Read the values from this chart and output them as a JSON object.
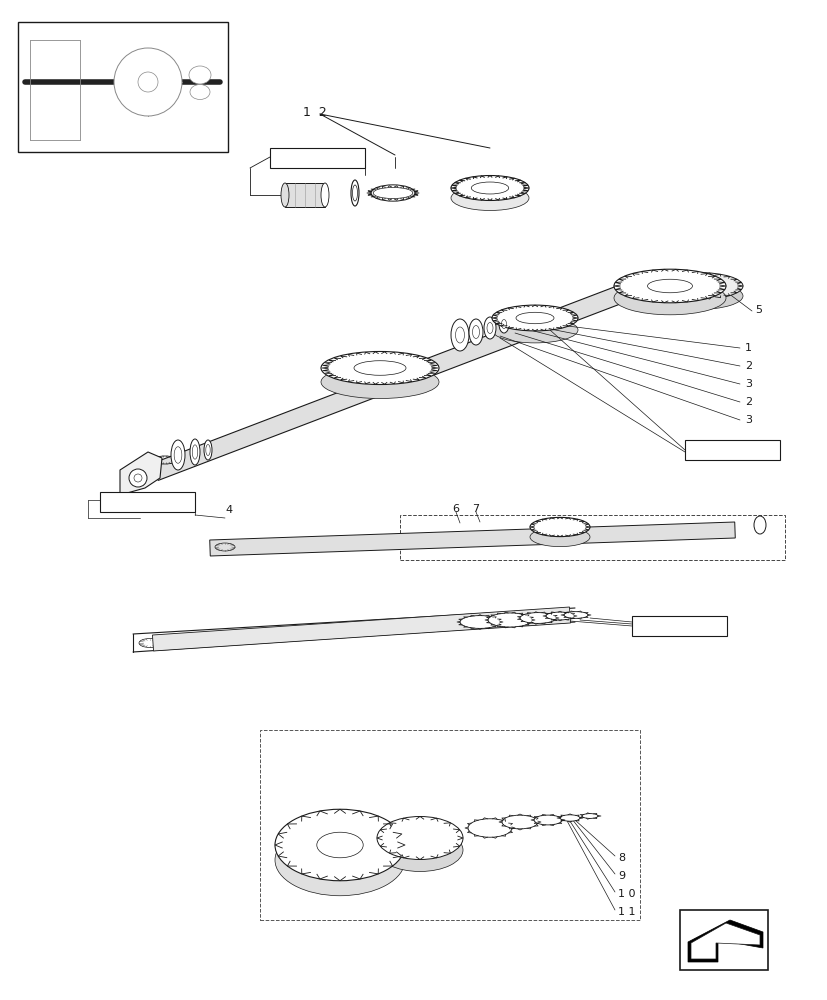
{
  "bg_color": "#ffffff",
  "line_color": "#1a1a1a",
  "fig_width": 8.28,
  "fig_height": 10.0,
  "dpi": 100
}
